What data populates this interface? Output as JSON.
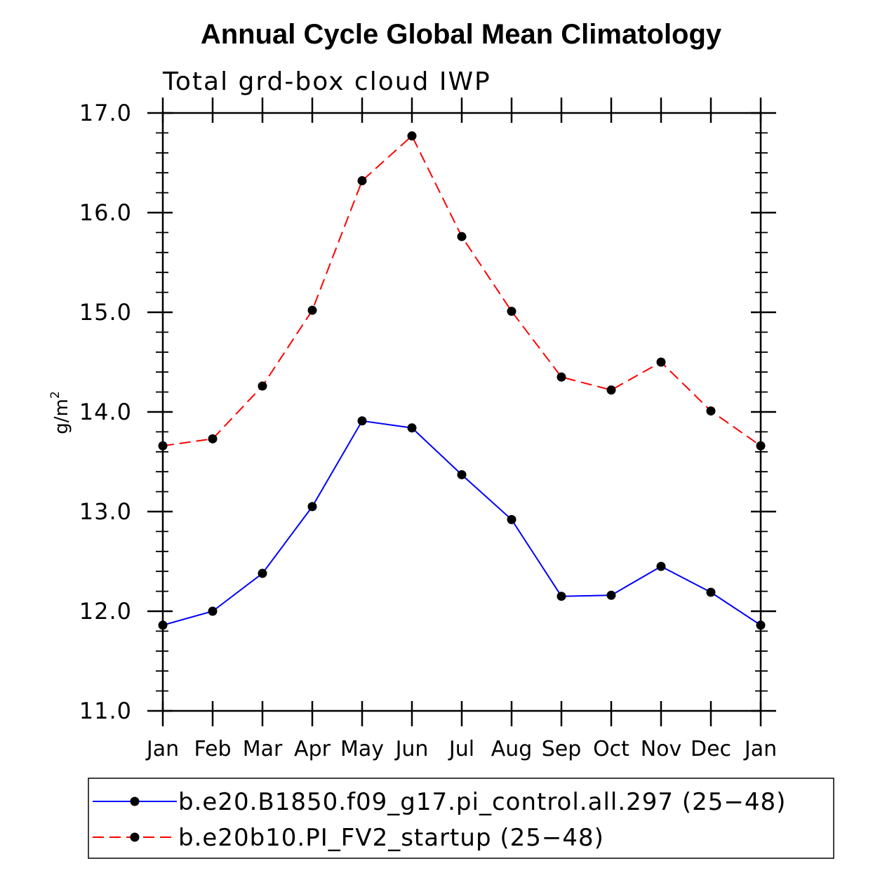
{
  "chart_data": {
    "type": "line",
    "title": "Annual Cycle Global Mean Climatology",
    "subtitle": "Total grd-box cloud IWP",
    "ylabel": "g/m",
    "ylabel_superscript": "2",
    "xlabel": "",
    "categories": [
      "Jan",
      "Feb",
      "Mar",
      "Apr",
      "May",
      "Jun",
      "Jul",
      "Aug",
      "Sep",
      "Oct",
      "Nov",
      "Dec",
      "Jan"
    ],
    "ylim": [
      11.0,
      17.0
    ],
    "yticks": [
      "11.0",
      "12.0",
      "13.0",
      "14.0",
      "15.0",
      "16.0",
      "17.0"
    ],
    "grid": false,
    "legend_position": "bottom",
    "series": [
      {
        "name": "b.e20.B1850.f09_g17.pi_control.all.297 (25−48)",
        "color": "#0000ff",
        "line_style": "solid",
        "marker": "filled-circle",
        "values": [
          11.86,
          12.0,
          12.38,
          13.05,
          13.91,
          13.84,
          13.37,
          12.92,
          12.15,
          12.16,
          12.45,
          12.19,
          11.86
        ]
      },
      {
        "name": "b.e20b10.PI_FV2_startup (25−48)",
        "color": "#ff0000",
        "line_style": "dashed",
        "marker": "filled-circle",
        "values": [
          13.66,
          13.73,
          14.26,
          15.02,
          16.32,
          16.77,
          15.76,
          15.01,
          14.35,
          14.22,
          14.5,
          14.01,
          13.66
        ]
      }
    ]
  }
}
